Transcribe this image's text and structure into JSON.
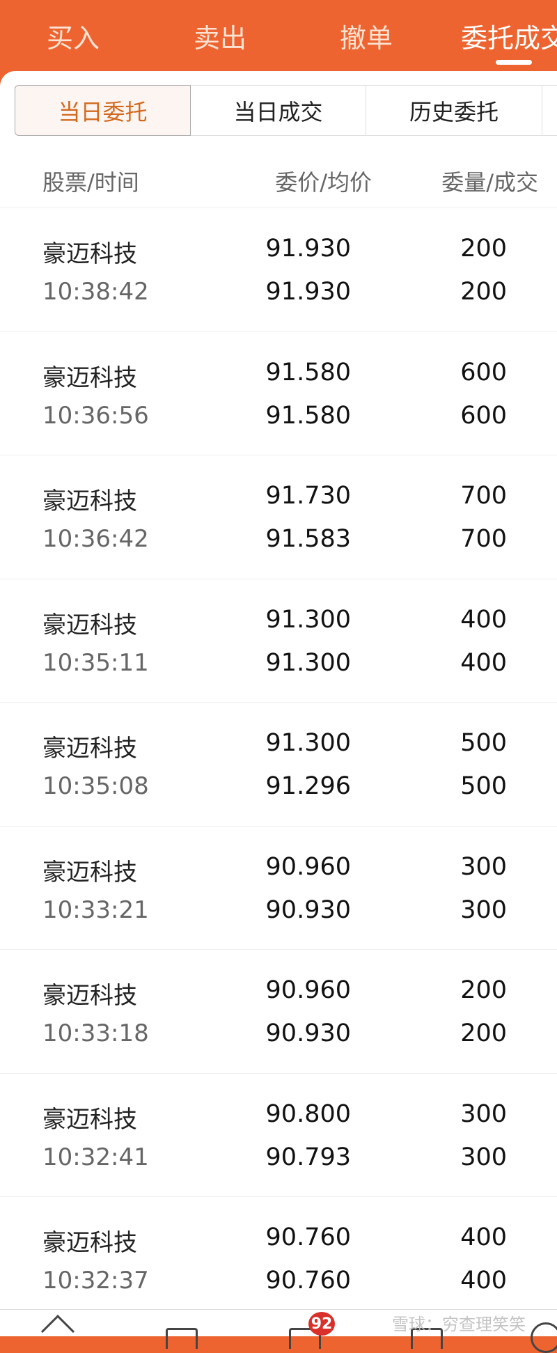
{
  "top_tabs": [
    {
      "label": "买入"
    },
    {
      "label": "卖出"
    },
    {
      "label": "撤单"
    },
    {
      "label": "委托成交"
    }
  ],
  "active_top_tab": "委托成交",
  "sub_tabs": [
    {
      "label": "当日委托"
    },
    {
      "label": "当日成交"
    },
    {
      "label": "历史委托"
    }
  ],
  "active_sub_tab": "当日委托",
  "columns": {
    "stock_time": "股票/时间",
    "price": "委价/均价",
    "qty": "委量/成交"
  },
  "orders": [
    {
      "name": "豪迈科技",
      "time": "10:38:42",
      "order_price": "91.930",
      "avg_price": "91.930",
      "order_qty": "200",
      "filled_qty": "200"
    },
    {
      "name": "豪迈科技",
      "time": "10:36:56",
      "order_price": "91.580",
      "avg_price": "91.580",
      "order_qty": "600",
      "filled_qty": "600"
    },
    {
      "name": "豪迈科技",
      "time": "10:36:42",
      "order_price": "91.730",
      "avg_price": "91.583",
      "order_qty": "700",
      "filled_qty": "700"
    },
    {
      "name": "豪迈科技",
      "time": "10:35:11",
      "order_price": "91.300",
      "avg_price": "91.300",
      "order_qty": "400",
      "filled_qty": "400"
    },
    {
      "name": "豪迈科技",
      "time": "10:35:08",
      "order_price": "91.300",
      "avg_price": "91.296",
      "order_qty": "500",
      "filled_qty": "500"
    },
    {
      "name": "豪迈科技",
      "time": "10:33:21",
      "order_price": "90.960",
      "avg_price": "90.930",
      "order_qty": "300",
      "filled_qty": "300"
    },
    {
      "name": "豪迈科技",
      "time": "10:33:18",
      "order_price": "90.960",
      "avg_price": "90.930",
      "order_qty": "200",
      "filled_qty": "200"
    },
    {
      "name": "豪迈科技",
      "time": "10:32:41",
      "order_price": "90.800",
      "avg_price": "90.793",
      "order_qty": "300",
      "filled_qty": "300"
    },
    {
      "name": "豪迈科技",
      "time": "10:32:37",
      "order_price": "90.760",
      "avg_price": "90.760",
      "order_qty": "400",
      "filled_qty": "400"
    }
  ],
  "bottom_nav": {
    "badge_count": "92",
    "icons": [
      "home-icon",
      "square-icon",
      "box-icon",
      "square-icon",
      "chevron-up-circle-icon"
    ]
  },
  "watermark": "雪球：穷查理笑笑",
  "colors": {
    "brand": "#ee6430",
    "active_sub_tab": "#d2691e",
    "badge": "#d9302a"
  }
}
